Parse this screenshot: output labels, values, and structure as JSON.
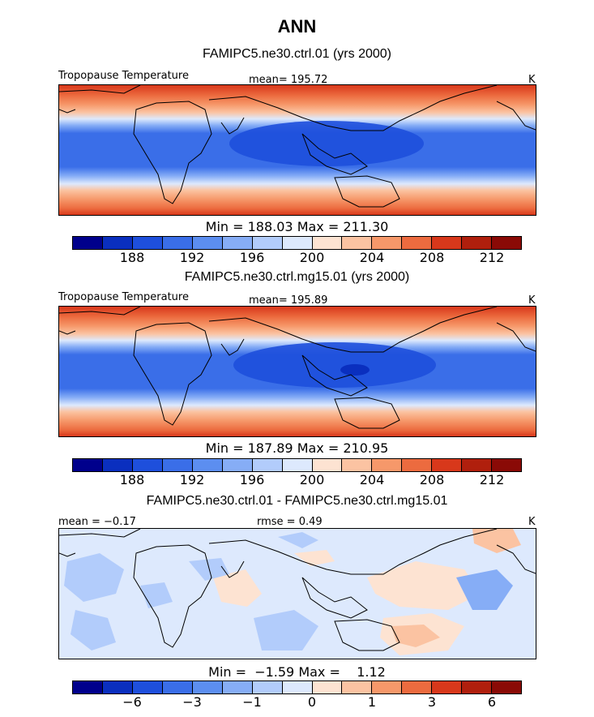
{
  "title": "ANN",
  "units": "K",
  "colormap": [
    "#00008c",
    "#0a2fbf",
    "#1e4fdc",
    "#3a6ee8",
    "#5c8ef0",
    "#86adf6",
    "#b2ccfb",
    "#dde9fd",
    "#fde3d2",
    "#fbc3a2",
    "#f6986a",
    "#ec6b3f",
    "#d8381b",
    "#b01f0d",
    "#8a0a06"
  ],
  "panels": [
    {
      "case": "FAMIPC5.ne30.ctrl.01 (yrs 2000)",
      "variable": "Tropopause Temperature",
      "mean_text": "mean= 195.72",
      "minmax_text": "Min = 188.03 Max = 211.30",
      "ticks": [
        "188",
        "192",
        "196",
        "200",
        "204",
        "208",
        "212"
      ]
    },
    {
      "case": "FAMIPC5.ne30.ctrl.mg15.01 (yrs 2000)",
      "variable": "Tropopause Temperature",
      "mean_text": "mean= 195.89",
      "minmax_text": "Min = 187.89 Max = 210.95",
      "ticks": [
        "188",
        "192",
        "196",
        "200",
        "204",
        "208",
        "212"
      ]
    },
    {
      "case": "FAMIPC5.ne30.ctrl.01 - FAMIPC5.ne30.ctrl.mg15.01",
      "mean_text": "mean =  −0.17",
      "rmse_text": "rmse =    0.49",
      "minmax_text": "Min =  −1.59 Max =    1.12",
      "ticks": [
        "−6",
        "−3",
        "−1",
        "0",
        "1",
        "3",
        "6"
      ]
    }
  ]
}
